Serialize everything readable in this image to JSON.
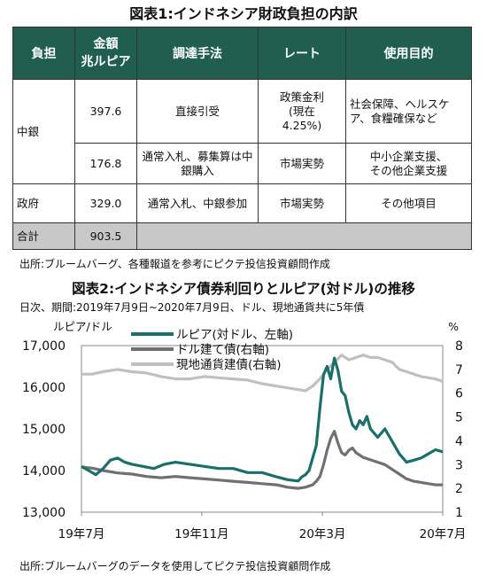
{
  "title1": "図表1:インドネシア財政負担の内訳",
  "table": {
    "headers": [
      "負担",
      "金額\n兆ルピア",
      "調達手法",
      "レート",
      "使用目的"
    ],
    "rows": [
      {
        "payer": "中銀",
        "amount": "397.6",
        "method": "直接引受",
        "rate": "政策金利\n(現在\n4.25%)",
        "purpose": "社会保障、ヘルスケア、食糧確保など"
      },
      {
        "payer": "",
        "amount": "176.8",
        "method": "通常入札、募集算は中銀購入",
        "rate": "市場実勢",
        "purpose": "中小企業支援、\nその他企業支援"
      },
      {
        "payer": "政府",
        "amount": "329.0",
        "method": "通常入札、中銀参加",
        "rate": "市場実勢",
        "purpose": "その他項目"
      }
    ],
    "total": {
      "label": "合計",
      "amount": "903.5"
    }
  },
  "source1": "出所:ブルームバーグ、各種報道を参考にピクテ投信投資顧問作成",
  "title2": "図表2:インドネシア債券利回りとルピア(対ドル)の推移",
  "subtitle2": "日次、期間:2019年7月9日~2020年7月9日、ドル、現地通貨共に5年債",
  "source2": "出所:ブルームバーグのデータを使用してピクテ投信投資顧問作成",
  "chart_data": {
    "type": "line",
    "left_axis_label": "ルピア/ドル",
    "right_axis_label": "%",
    "left_ylim": [
      13000,
      17000
    ],
    "left_ticks": [
      "13,000",
      "14,000",
      "15,000",
      "16,000",
      "17,000"
    ],
    "right_ylim": [
      1,
      8
    ],
    "right_ticks": [
      "1",
      "2",
      "3",
      "4",
      "5",
      "6",
      "7",
      "8"
    ],
    "x_labels": [
      {
        "label": "19年7月",
        "t": 0
      },
      {
        "label": "19年11月",
        "t": 0.333
      },
      {
        "label": "20年3月",
        "t": 0.667
      },
      {
        "label": "20年7月",
        "t": 1.0
      }
    ],
    "grid": "none",
    "legend_position": "top-left",
    "series": [
      {
        "name": "ルピア(対ドル、左軸)",
        "axis": "left",
        "color": "#1b6f6a",
        "x": [
          0,
          0.02,
          0.04,
          0.06,
          0.08,
          0.1,
          0.12,
          0.14,
          0.17,
          0.2,
          0.23,
          0.26,
          0.3,
          0.34,
          0.38,
          0.42,
          0.46,
          0.5,
          0.54,
          0.57,
          0.6,
          0.61,
          0.62,
          0.63,
          0.64,
          0.65,
          0.66,
          0.67,
          0.68,
          0.69,
          0.7,
          0.71,
          0.72,
          0.73,
          0.74,
          0.75,
          0.76,
          0.77,
          0.78,
          0.79,
          0.8,
          0.82,
          0.84,
          0.86,
          0.88,
          0.9,
          0.92,
          0.94,
          0.96,
          0.98,
          1.0
        ],
        "values": [
          14100,
          14000,
          13900,
          14050,
          14250,
          14300,
          14200,
          14150,
          14100,
          14050,
          14150,
          14200,
          14150,
          14100,
          14050,
          14050,
          13950,
          13950,
          13850,
          13780,
          13750,
          13850,
          13900,
          14000,
          14300,
          14600,
          15500,
          16300,
          16500,
          16200,
          16700,
          16400,
          15900,
          15800,
          15400,
          15100,
          15000,
          15200,
          15100,
          15300,
          15000,
          14800,
          15000,
          14700,
          14400,
          14200,
          14250,
          14300,
          14400,
          14500,
          14450
        ]
      },
      {
        "name": "ドル建て債(右軸)",
        "axis": "right",
        "color": "#707070",
        "x": [
          0,
          0.03,
          0.06,
          0.1,
          0.14,
          0.18,
          0.22,
          0.26,
          0.3,
          0.34,
          0.38,
          0.42,
          0.46,
          0.5,
          0.54,
          0.57,
          0.6,
          0.62,
          0.64,
          0.65,
          0.66,
          0.67,
          0.68,
          0.69,
          0.7,
          0.71,
          0.72,
          0.73,
          0.74,
          0.75,
          0.76,
          0.78,
          0.8,
          0.82,
          0.84,
          0.86,
          0.88,
          0.9,
          0.92,
          0.94,
          0.96,
          0.98,
          1.0
        ],
        "values": [
          2.9,
          2.85,
          2.75,
          2.65,
          2.6,
          2.5,
          2.45,
          2.5,
          2.45,
          2.4,
          2.35,
          2.3,
          2.25,
          2.2,
          2.15,
          2.05,
          2.0,
          2.05,
          2.15,
          2.3,
          2.5,
          3.0,
          3.6,
          4.1,
          4.4,
          3.9,
          3.5,
          3.4,
          3.6,
          3.7,
          3.5,
          3.3,
          3.2,
          3.1,
          3.0,
          2.8,
          2.6,
          2.4,
          2.3,
          2.25,
          2.2,
          2.15,
          2.15
        ]
      },
      {
        "name": "現地通貨建債(右軸)",
        "axis": "right",
        "color": "#c0c0c0",
        "x": [
          0,
          0.03,
          0.06,
          0.1,
          0.14,
          0.18,
          0.22,
          0.26,
          0.3,
          0.34,
          0.38,
          0.42,
          0.46,
          0.5,
          0.54,
          0.58,
          0.62,
          0.64,
          0.66,
          0.68,
          0.7,
          0.72,
          0.74,
          0.76,
          0.78,
          0.8,
          0.82,
          0.84,
          0.86,
          0.88,
          0.9,
          0.92,
          0.94,
          0.96,
          0.98,
          1.0
        ],
        "values": [
          6.8,
          6.8,
          6.9,
          7.0,
          6.9,
          6.85,
          6.7,
          6.6,
          6.6,
          6.7,
          6.65,
          6.6,
          6.55,
          6.4,
          6.3,
          6.2,
          6.1,
          6.3,
          6.6,
          7.0,
          7.3,
          7.6,
          7.4,
          7.5,
          7.6,
          7.5,
          7.5,
          7.4,
          7.3,
          7.0,
          6.9,
          6.8,
          6.7,
          6.65,
          6.6,
          6.5
        ]
      }
    ]
  }
}
